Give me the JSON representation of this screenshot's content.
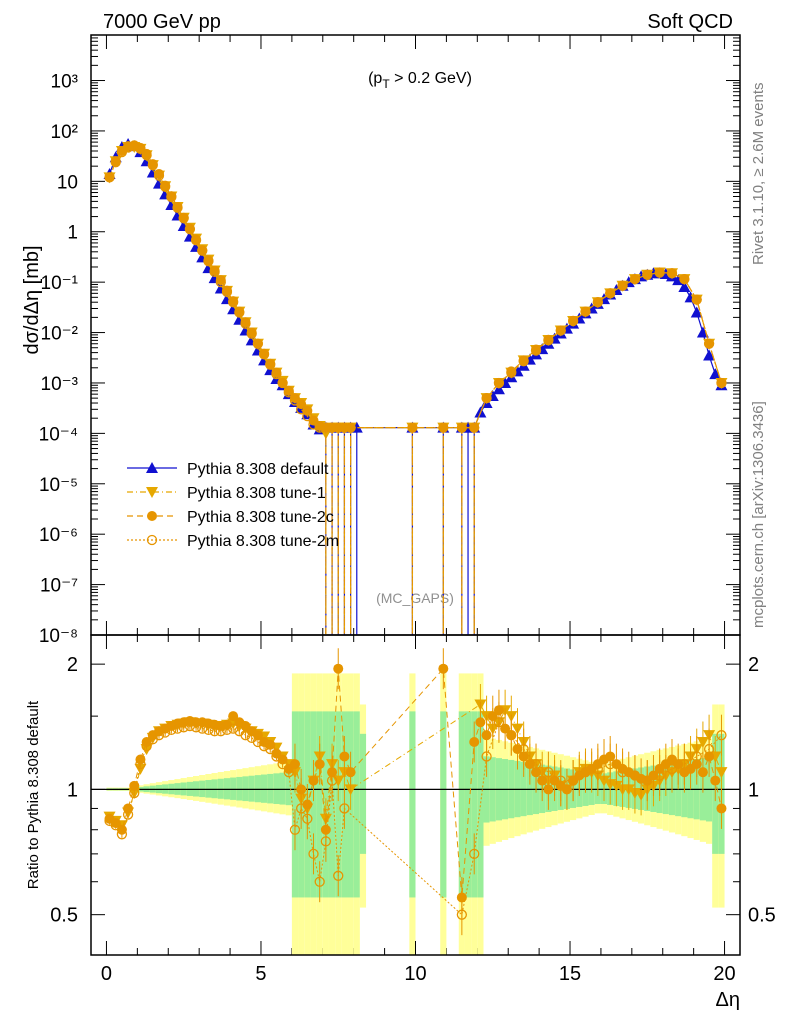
{
  "header": {
    "energy_label": "7000 GeV pp",
    "process_label": "Soft QCD"
  },
  "annotations": {
    "cut_label": "(pT > 0.2 GeV)",
    "cut_label_main": "(p",
    "cut_label_sub": "T",
    "cut_label_rest": " > 0.2 GeV)",
    "analysis_label": "(MC_GAPS)",
    "rivet_label": "Rivet 3.1.10, ≥ 2.6M events",
    "mcplots_label": "mcplots.cern.ch [arXiv:1306.3436]"
  },
  "chart_data": {
    "type": "line",
    "top": {
      "ylabel": "dσ/dΔη [mb]",
      "yscale": "log",
      "ylim": [
        1e-08,
        8000
      ],
      "ytick_labels": [
        "10³",
        "10²",
        "10",
        "1",
        "10⁻¹",
        "10⁻²",
        "10⁻³",
        "10⁻⁴",
        "10⁻⁵",
        "10⁻⁶",
        "10⁻⁷",
        "10⁻⁸"
      ],
      "ytick_values": [
        1000,
        100,
        10,
        1,
        0.1,
        0.01,
        0.001,
        0.0001,
        1e-05,
        1e-06,
        1e-07,
        1e-08
      ]
    },
    "bottom": {
      "ylabel": "Ratio to Pythia 8.308 default",
      "yscale": "log",
      "ylim": [
        0.4,
        2.35
      ],
      "ytick_labels": [
        "2",
        "1",
        "0.5"
      ],
      "ytick_values": [
        2,
        1,
        0.5
      ]
    },
    "xlabel": "Δη",
    "xlim": [
      -0.5,
      20.5
    ],
    "xtick_labels": [
      "0",
      "5",
      "10",
      "15",
      "20"
    ],
    "xtick_values": [
      0,
      5,
      10,
      15,
      20
    ],
    "legend_position": "lower-left",
    "series": [
      {
        "name": "Pythia 8.308 default",
        "color": "#1010d0",
        "marker": "triangle-up",
        "line": "solid",
        "x": [
          0.1,
          0.3,
          0.5,
          0.7,
          0.9,
          1.1,
          1.3,
          1.5,
          1.7,
          1.9,
          2.1,
          2.3,
          2.5,
          2.7,
          2.9,
          3.1,
          3.3,
          3.5,
          3.7,
          3.9,
          4.1,
          4.3,
          4.5,
          4.7,
          4.9,
          5.1,
          5.3,
          5.5,
          5.7,
          5.9,
          6.1,
          6.3,
          6.5,
          6.7,
          6.9,
          7.1,
          7.3,
          7.5,
          7.7,
          7.9,
          8.1,
          9.9,
          10.9,
          11.5,
          11.7,
          11.9,
          12.1,
          12.3,
          12.5,
          12.7,
          12.9,
          13.1,
          13.3,
          13.5,
          13.7,
          13.9,
          14.1,
          14.3,
          14.5,
          14.7,
          14.9,
          15.1,
          15.3,
          15.5,
          15.7,
          15.9,
          16.1,
          16.3,
          16.5,
          16.7,
          16.9,
          17.1,
          17.3,
          17.5,
          17.7,
          17.9,
          18.1,
          18.3,
          18.5,
          18.7,
          18.9,
          19.1,
          19.3,
          19.5,
          19.7,
          19.9
        ],
        "y": [
          14,
          30,
          48,
          55,
          50,
          38,
          25,
          15,
          9,
          5.5,
          3.4,
          2.1,
          1.3,
          0.8,
          0.5,
          0.31,
          0.19,
          0.12,
          0.075,
          0.046,
          0.029,
          0.018,
          0.011,
          0.007,
          0.0044,
          0.0028,
          0.0018,
          0.0012,
          0.0009,
          0.0006,
          0.00042,
          0.00032,
          0.00024,
          0.00015,
          0.00012,
          0.00013,
          0.00013,
          0.00013,
          0.00013,
          0.00013,
          0.00013,
          0.00013,
          0.00013,
          0.00013,
          0.00013,
          0.00013,
          0.00026,
          0.0004,
          0.00055,
          0.00075,
          0.001,
          0.0013,
          0.0017,
          0.0022,
          0.0029,
          0.0037,
          0.0047,
          0.006,
          0.0076,
          0.0096,
          0.012,
          0.015,
          0.019,
          0.024,
          0.03,
          0.037,
          0.046,
          0.057,
          0.07,
          0.085,
          0.1,
          0.115,
          0.13,
          0.14,
          0.15,
          0.15,
          0.145,
          0.13,
          0.11,
          0.08,
          0.05,
          0.025,
          0.01,
          0.0035,
          0.0015,
          0.0009
        ]
      },
      {
        "name": "Pythia 8.308 tune-1",
        "color": "#e6a800",
        "marker": "triangle-down",
        "line": "dash-dot",
        "x": [
          0.1,
          0.3,
          0.5,
          0.7,
          0.9,
          1.1,
          1.3,
          1.5,
          1.7,
          1.9,
          2.1,
          2.3,
          2.5,
          2.7,
          2.9,
          3.1,
          3.3,
          3.5,
          3.7,
          3.9,
          4.1,
          4.3,
          4.5,
          4.7,
          4.9,
          5.1,
          5.3,
          5.5,
          5.7,
          5.9,
          6.1,
          6.3,
          6.5,
          6.7,
          6.9,
          7.1,
          7.3,
          7.5,
          7.7,
          7.9,
          9.9,
          10.9,
          11.5,
          11.9,
          12.3,
          12.7,
          13.1,
          13.5,
          13.9,
          14.3,
          14.7,
          15.1,
          15.5,
          15.9,
          16.3,
          16.7,
          17.1,
          17.5,
          17.9,
          18.3,
          18.7,
          19.1,
          19.5,
          19.9
        ],
        "y": [
          12,
          25,
          40,
          48,
          48,
          44,
          33,
          21,
          13,
          8,
          5,
          3.1,
          1.9,
          1.2,
          0.73,
          0.45,
          0.28,
          0.17,
          0.11,
          0.067,
          0.041,
          0.026,
          0.016,
          0.01,
          0.006,
          0.0038,
          0.0024,
          0.0016,
          0.0011,
          0.0007,
          0.0005,
          0.0004,
          0.0003,
          0.0002,
          0.00014,
          0.0001,
          0.00013,
          0.00013,
          0.00013,
          0.00013,
          0.00013,
          0.00013,
          0.00013,
          0.00013,
          0.0005,
          0.001,
          0.0016,
          0.0028,
          0.0045,
          0.0071,
          0.011,
          0.017,
          0.026,
          0.04,
          0.06,
          0.085,
          0.115,
          0.14,
          0.155,
          0.15,
          0.115,
          0.045,
          0.006,
          0.001
        ]
      },
      {
        "name": "Pythia 8.308 tune-2c",
        "color": "#e69500",
        "marker": "circle",
        "line": "dashed",
        "x": [
          0.1,
          0.3,
          0.5,
          0.7,
          0.9,
          1.1,
          1.3,
          1.5,
          1.7,
          1.9,
          2.1,
          2.3,
          2.5,
          2.7,
          2.9,
          3.1,
          3.3,
          3.5,
          3.7,
          3.9,
          4.1,
          4.3,
          4.5,
          4.7,
          4.9,
          5.1,
          5.3,
          5.5,
          5.7,
          5.9,
          6.1,
          6.3,
          6.5,
          6.7,
          6.9,
          7.1,
          7.3,
          7.5,
          7.7,
          7.9,
          9.9,
          10.9,
          11.5,
          11.9,
          12.3,
          12.7,
          13.1,
          13.5,
          13.9,
          14.3,
          14.7,
          15.1,
          15.5,
          15.9,
          16.3,
          16.7,
          17.1,
          17.5,
          17.9,
          18.3,
          18.7,
          19.1,
          19.5,
          19.9
        ],
        "y": [
          12,
          25,
          40,
          50,
          52,
          46,
          35,
          22,
          14,
          8.2,
          5.1,
          3.1,
          1.9,
          1.15,
          0.7,
          0.43,
          0.27,
          0.17,
          0.11,
          0.068,
          0.042,
          0.026,
          0.016,
          0.01,
          0.006,
          0.0038,
          0.0024,
          0.0016,
          0.001,
          0.0007,
          0.0005,
          0.00038,
          0.00028,
          0.00018,
          0.00014,
          0.00013,
          0.00013,
          0.00013,
          0.00013,
          0.00013,
          0.00013,
          0.00013,
          0.00013,
          0.00013,
          0.0005,
          0.001,
          0.0017,
          0.0028,
          0.0046,
          0.0072,
          0.011,
          0.017,
          0.026,
          0.04,
          0.06,
          0.085,
          0.115,
          0.14,
          0.155,
          0.15,
          0.115,
          0.045,
          0.006,
          0.001
        ]
      },
      {
        "name": "Pythia 8.308 tune-2m",
        "color": "#e69500",
        "marker": "circle-open",
        "line": "dotted",
        "x": [
          0.1,
          0.3,
          0.5,
          0.7,
          0.9,
          1.1,
          1.3,
          1.5,
          1.7,
          1.9,
          2.1,
          2.3,
          2.5,
          2.7,
          2.9,
          3.1,
          3.3,
          3.5,
          3.7,
          3.9,
          4.1,
          4.3,
          4.5,
          4.7,
          4.9,
          5.1,
          5.3,
          5.5,
          5.7,
          5.9,
          6.1,
          6.3,
          6.5,
          6.7,
          6.9,
          7.1,
          7.3,
          7.5,
          7.7,
          7.9,
          9.9,
          10.9,
          11.5,
          11.9,
          12.3,
          12.7,
          13.1,
          13.5,
          13.9,
          14.3,
          14.7,
          15.1,
          15.5,
          15.9,
          16.3,
          16.7,
          17.1,
          17.5,
          17.9,
          18.3,
          18.7,
          19.1,
          19.5,
          19.9
        ],
        "y": [
          12,
          24,
          38,
          47,
          50,
          44,
          33,
          21,
          13,
          7.8,
          4.9,
          3,
          1.85,
          1.12,
          0.68,
          0.42,
          0.26,
          0.16,
          0.1,
          0.064,
          0.04,
          0.025,
          0.015,
          0.0095,
          0.006,
          0.0037,
          0.0023,
          0.0015,
          0.001,
          0.00065,
          0.00045,
          0.0003,
          0.00022,
          0.00015,
          0.00013,
          0.00013,
          0.00013,
          0.00013,
          0.00013,
          0.00013,
          0.00013,
          0.00013,
          0.00013,
          0.00013,
          0.0005,
          0.001,
          0.0016,
          0.0027,
          0.0044,
          0.007,
          0.011,
          0.017,
          0.026,
          0.04,
          0.06,
          0.085,
          0.115,
          0.14,
          0.155,
          0.15,
          0.115,
          0.045,
          0.006,
          0.001
        ]
      }
    ],
    "ratio_series": [
      {
        "name": "Pythia 8.308 tune-1",
        "x": [
          0.1,
          0.3,
          0.5,
          0.7,
          0.9,
          1.1,
          1.3,
          1.5,
          1.7,
          1.9,
          2.1,
          2.3,
          2.5,
          2.7,
          2.9,
          3.1,
          3.3,
          3.5,
          3.7,
          3.9,
          4.1,
          4.3,
          4.5,
          4.7,
          4.9,
          5.1,
          5.3,
          5.5,
          5.7,
          5.9,
          6.1,
          6.3,
          6.5,
          6.7,
          6.9,
          7.1,
          7.3,
          7.5,
          7.7,
          7.9,
          12.1,
          12.3,
          12.5,
          12.7,
          12.9,
          13.1,
          13.3,
          13.5,
          13.7,
          13.9,
          14.1,
          14.3,
          14.5,
          14.7,
          14.9,
          15.1,
          15.3,
          15.5,
          15.7,
          15.9,
          16.1,
          16.3,
          16.5,
          16.7,
          16.9,
          17.1,
          17.3,
          17.5,
          17.7,
          17.9,
          18.1,
          18.3,
          18.5,
          18.7,
          18.9,
          19.1,
          19.3,
          19.5,
          19.7,
          19.9
        ],
        "y": [
          0.86,
          0.84,
          0.82,
          0.88,
          0.98,
          1.12,
          1.25,
          1.33,
          1.38,
          1.4,
          1.42,
          1.43,
          1.44,
          1.45,
          1.44,
          1.44,
          1.43,
          1.42,
          1.42,
          1.43,
          1.44,
          1.42,
          1.4,
          1.38,
          1.36,
          1.34,
          1.3,
          1.26,
          1.2,
          1.15,
          1.1,
          0.95,
          0.9,
          1.05,
          1.2,
          0.85,
          1.15,
          1.05,
          1.1,
          1.0,
          1.6,
          1.5,
          1.4,
          1.45,
          1.55,
          1.5,
          1.4,
          1.3,
          1.2,
          1.15,
          1.1,
          1.05,
          1.08,
          1.02,
          1.0,
          1.05,
          1.1,
          1.12,
          1.1,
          1.08,
          1.05,
          1.03,
          1.02,
          1.0,
          1.0,
          0.98,
          0.97,
          1.0,
          1.02,
          1.05,
          1.08,
          1.1,
          1.12,
          1.15,
          1.2,
          1.25,
          1.3,
          1.35,
          1.2,
          1.1
        ]
      },
      {
        "name": "Pythia 8.308 tune-2c",
        "x": [
          0.1,
          0.3,
          0.5,
          0.7,
          0.9,
          1.1,
          1.3,
          1.5,
          1.7,
          1.9,
          2.1,
          2.3,
          2.5,
          2.7,
          2.9,
          3.1,
          3.3,
          3.5,
          3.7,
          3.9,
          4.1,
          4.3,
          4.5,
          4.7,
          4.9,
          5.1,
          5.3,
          5.5,
          5.7,
          5.9,
          6.1,
          6.3,
          6.5,
          6.7,
          6.9,
          7.1,
          7.3,
          7.5,
          7.7,
          7.9,
          10.9,
          11.5,
          11.9,
          12.1,
          12.3,
          12.5,
          12.7,
          12.9,
          13.1,
          13.3,
          13.5,
          13.7,
          13.9,
          14.1,
          14.3,
          14.5,
          14.7,
          14.9,
          15.1,
          15.3,
          15.5,
          15.7,
          15.9,
          16.1,
          16.3,
          16.5,
          16.7,
          16.9,
          17.1,
          17.3,
          17.5,
          17.7,
          17.9,
          18.1,
          18.3,
          18.5,
          18.7,
          18.9,
          19.1,
          19.3,
          19.5,
          19.7,
          19.9
        ],
        "y": [
          0.85,
          0.83,
          0.8,
          0.9,
          1.02,
          1.18,
          1.3,
          1.35,
          1.38,
          1.4,
          1.42,
          1.44,
          1.45,
          1.46,
          1.45,
          1.45,
          1.44,
          1.43,
          1.42,
          1.43,
          1.5,
          1.45,
          1.42,
          1.38,
          1.35,
          1.3,
          1.28,
          1.22,
          1.18,
          1.12,
          1.15,
          1.0,
          0.92,
          1.05,
          1.15,
          0.8,
          1.1,
          1.95,
          1.2,
          1.1,
          1.95,
          0.55,
          1.3,
          1.45,
          1.35,
          1.5,
          1.55,
          1.4,
          1.35,
          1.25,
          1.2,
          1.15,
          1.1,
          1.05,
          1.0,
          1.05,
          1.02,
          1.0,
          1.05,
          1.08,
          1.1,
          1.12,
          1.15,
          1.18,
          1.2,
          1.15,
          1.12,
          1.1,
          1.08,
          1.06,
          1.05,
          1.08,
          1.12,
          1.15,
          1.18,
          1.15,
          1.1,
          1.12,
          1.15,
          1.1,
          1.2,
          1.05,
          0.9
        ]
      },
      {
        "name": "Pythia 8.308 tune-2m",
        "x": [
          0.1,
          0.3,
          0.5,
          0.7,
          0.9,
          1.1,
          1.3,
          1.5,
          1.7,
          1.9,
          2.1,
          2.3,
          2.5,
          2.7,
          2.9,
          3.1,
          3.3,
          3.5,
          3.7,
          3.9,
          4.1,
          4.3,
          4.5,
          4.7,
          4.9,
          5.1,
          5.3,
          5.5,
          5.7,
          5.9,
          6.1,
          6.3,
          6.5,
          6.7,
          6.9,
          7.1,
          7.3,
          7.5,
          7.7,
          11.5,
          11.9,
          12.3,
          12.7,
          13.1,
          13.5,
          13.9,
          14.3,
          14.7,
          15.1,
          15.5,
          15.9,
          16.3,
          16.7,
          17.1,
          17.5,
          17.9,
          18.3,
          18.7,
          19.1,
          19.5,
          19.9
        ],
        "y": [
          0.84,
          0.82,
          0.78,
          0.87,
          0.98,
          1.15,
          1.27,
          1.32,
          1.35,
          1.37,
          1.39,
          1.4,
          1.41,
          1.42,
          1.41,
          1.4,
          1.39,
          1.38,
          1.38,
          1.39,
          1.4,
          1.38,
          1.35,
          1.33,
          1.3,
          1.27,
          1.25,
          1.2,
          1.15,
          1.1,
          0.8,
          0.9,
          0.85,
          0.7,
          0.6,
          0.75,
          1.05,
          0.62,
          0.9,
          0.5,
          0.7,
          1.2,
          1.45,
          1.35,
          1.25,
          1.15,
          1.1,
          1.05,
          1.05,
          1.1,
          1.12,
          1.15,
          1.1,
          1.08,
          1.05,
          1.08,
          1.12,
          1.15,
          1.2,
          1.25,
          1.35
        ]
      }
    ]
  },
  "legend": [
    {
      "label": "Pythia 8.308 default",
      "color": "#1010d0",
      "marker": "triangle-up",
      "dash": ""
    },
    {
      "label": "Pythia 8.308 tune-1",
      "color": "#e6a800",
      "marker": "triangle-down",
      "dash": "6,3,1,3"
    },
    {
      "label": "Pythia 8.308 tune-2c",
      "color": "#e69500",
      "marker": "circle",
      "dash": "6,4"
    },
    {
      "label": "Pythia 8.308 tune-2m",
      "color": "#e69500",
      "marker": "circle-open",
      "dash": "2,2"
    }
  ]
}
